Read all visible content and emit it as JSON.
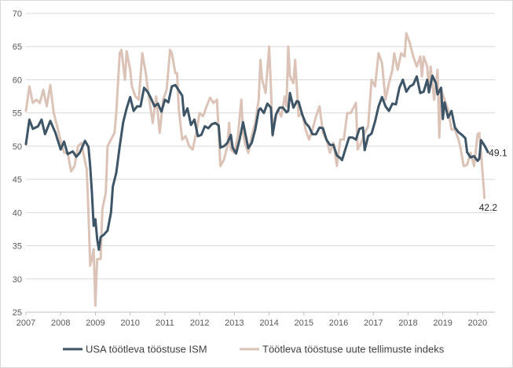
{
  "chart_data": {
    "type": "line",
    "title": "",
    "xlabel": "",
    "ylabel": "",
    "ylim": [
      25,
      70
    ],
    "yticks": [
      25,
      30,
      35,
      40,
      45,
      50,
      55,
      60,
      65,
      70
    ],
    "xlim": [
      2007,
      2020.5
    ],
    "xticks": [
      "2007",
      "2008",
      "2009",
      "2010",
      "2011",
      "2012",
      "2013",
      "2014",
      "2015",
      "2016",
      "2017",
      "2018",
      "2019",
      "2020"
    ],
    "grid": "horizontal",
    "legend_position": "bottom",
    "series": [
      {
        "name": "USA töötleva tööstuse ISM",
        "color": "#3d5566",
        "end_label": "49.1",
        "points": [
          [
            2007.0,
            50.3
          ],
          [
            2007.1,
            54.0
          ],
          [
            2007.2,
            52.6
          ],
          [
            2007.35,
            53.0
          ],
          [
            2007.45,
            54.0
          ],
          [
            2007.55,
            51.8
          ],
          [
            2007.7,
            53.8
          ],
          [
            2007.85,
            52.0
          ],
          [
            2008.0,
            49.5
          ],
          [
            2008.1,
            50.7
          ],
          [
            2008.2,
            48.8
          ],
          [
            2008.35,
            49.2
          ],
          [
            2008.45,
            48.4
          ],
          [
            2008.55,
            49.0
          ],
          [
            2008.7,
            50.8
          ],
          [
            2008.8,
            49.9
          ],
          [
            2008.85,
            47.0
          ],
          [
            2008.9,
            43.0
          ],
          [
            2008.95,
            38.0
          ],
          [
            2009.0,
            39.0
          ],
          [
            2009.05,
            36.0
          ],
          [
            2009.1,
            34.4
          ],
          [
            2009.15,
            36.3
          ],
          [
            2009.25,
            36.7
          ],
          [
            2009.35,
            37.3
          ],
          [
            2009.45,
            40.0
          ],
          [
            2009.5,
            43.9
          ],
          [
            2009.6,
            46.0
          ],
          [
            2009.7,
            50.0
          ],
          [
            2009.8,
            53.6
          ],
          [
            2009.9,
            55.7
          ],
          [
            2010.0,
            57.4
          ],
          [
            2010.1,
            55.3
          ],
          [
            2010.2,
            56.0
          ],
          [
            2010.3,
            56.0
          ],
          [
            2010.4,
            58.8
          ],
          [
            2010.5,
            58.2
          ],
          [
            2010.6,
            57.2
          ],
          [
            2010.7,
            56.0
          ],
          [
            2010.8,
            56.4
          ],
          [
            2010.9,
            55.2
          ],
          [
            2011.0,
            57.0
          ],
          [
            2011.1,
            56.6
          ],
          [
            2011.2,
            59.0
          ],
          [
            2011.3,
            59.2
          ],
          [
            2011.4,
            58.4
          ],
          [
            2011.5,
            57.6
          ],
          [
            2011.55,
            54.6
          ],
          [
            2011.65,
            55.7
          ],
          [
            2011.75,
            53.2
          ],
          [
            2011.85,
            54.0
          ],
          [
            2011.95,
            51.5
          ],
          [
            2012.05,
            51.7
          ],
          [
            2012.15,
            53.0
          ],
          [
            2012.25,
            52.7
          ],
          [
            2012.35,
            53.3
          ],
          [
            2012.45,
            53.5
          ],
          [
            2012.55,
            53.1
          ],
          [
            2012.6,
            49.8
          ],
          [
            2012.7,
            50.0
          ],
          [
            2012.8,
            50.5
          ],
          [
            2012.9,
            51.7
          ],
          [
            2012.95,
            49.8
          ],
          [
            2013.05,
            48.9
          ],
          [
            2013.15,
            51.0
          ],
          [
            2013.25,
            53.6
          ],
          [
            2013.35,
            51.0
          ],
          [
            2013.4,
            49.7
          ],
          [
            2013.5,
            50.5
          ],
          [
            2013.6,
            52.5
          ],
          [
            2013.7,
            55.4
          ],
          [
            2013.75,
            55.7
          ],
          [
            2013.85,
            55.0
          ],
          [
            2013.95,
            56.4
          ],
          [
            2014.05,
            55.8
          ],
          [
            2014.1,
            51.7
          ],
          [
            2014.2,
            54.8
          ],
          [
            2014.3,
            55.8
          ],
          [
            2014.4,
            55.8
          ],
          [
            2014.5,
            55.1
          ],
          [
            2014.55,
            55.3
          ],
          [
            2014.6,
            58.0
          ],
          [
            2014.7,
            55.8
          ],
          [
            2014.8,
            56.8
          ],
          [
            2014.85,
            56.7
          ],
          [
            2014.95,
            54.8
          ],
          [
            2015.05,
            53.5
          ],
          [
            2015.15,
            52.9
          ],
          [
            2015.25,
            51.8
          ],
          [
            2015.35,
            51.8
          ],
          [
            2015.45,
            52.8
          ],
          [
            2015.55,
            52.7
          ],
          [
            2015.65,
            51.0
          ],
          [
            2015.75,
            50.2
          ],
          [
            2015.85,
            50.2
          ],
          [
            2015.95,
            48.6
          ],
          [
            2016.05,
            48.2
          ],
          [
            2016.1,
            47.9
          ],
          [
            2016.2,
            49.6
          ],
          [
            2016.3,
            51.3
          ],
          [
            2016.4,
            51.3
          ],
          [
            2016.5,
            51.0
          ],
          [
            2016.6,
            52.6
          ],
          [
            2016.7,
            52.8
          ],
          [
            2016.75,
            49.4
          ],
          [
            2016.85,
            51.5
          ],
          [
            2016.95,
            51.9
          ],
          [
            2017.05,
            53.7
          ],
          [
            2017.15,
            56.0
          ],
          [
            2017.25,
            57.4
          ],
          [
            2017.35,
            56.0
          ],
          [
            2017.45,
            55.3
          ],
          [
            2017.55,
            56.4
          ],
          [
            2017.65,
            56.3
          ],
          [
            2017.75,
            58.8
          ],
          [
            2017.85,
            60.0
          ],
          [
            2017.95,
            58.2
          ],
          [
            2018.05,
            59.0
          ],
          [
            2018.15,
            59.3
          ],
          [
            2018.25,
            60.5
          ],
          [
            2018.35,
            58.0
          ],
          [
            2018.45,
            58.2
          ],
          [
            2018.55,
            60.0
          ],
          [
            2018.6,
            58.1
          ],
          [
            2018.7,
            60.6
          ],
          [
            2018.8,
            59.5
          ],
          [
            2018.85,
            57.8
          ],
          [
            2018.95,
            58.8
          ],
          [
            2019.0,
            54.1
          ],
          [
            2019.05,
            56.6
          ],
          [
            2019.15,
            54.3
          ],
          [
            2019.25,
            55.3
          ],
          [
            2019.35,
            52.8
          ],
          [
            2019.45,
            52.1
          ],
          [
            2019.55,
            51.7
          ],
          [
            2019.65,
            51.2
          ],
          [
            2019.7,
            49.1
          ],
          [
            2019.8,
            48.3
          ],
          [
            2019.9,
            48.5
          ],
          [
            2020.0,
            47.8
          ],
          [
            2020.05,
            48.1
          ],
          [
            2020.1,
            50.9
          ],
          [
            2020.2,
            50.1
          ],
          [
            2020.3,
            49.1
          ]
        ]
      },
      {
        "name": "Töötleva tööstuse uute tellimuste indeks",
        "color": "#dcc3b8",
        "end_label": "42.2",
        "points": [
          [
            2007.0,
            55.3
          ],
          [
            2007.1,
            59.0
          ],
          [
            2007.2,
            56.5
          ],
          [
            2007.3,
            57.0
          ],
          [
            2007.4,
            56.5
          ],
          [
            2007.5,
            58.5
          ],
          [
            2007.6,
            56.0
          ],
          [
            2007.7,
            59.2
          ],
          [
            2007.8,
            55.0
          ],
          [
            2007.9,
            53.0
          ],
          [
            2008.0,
            50.8
          ],
          [
            2008.1,
            49.0
          ],
          [
            2008.2,
            49.0
          ],
          [
            2008.3,
            46.2
          ],
          [
            2008.4,
            47.0
          ],
          [
            2008.5,
            50.0
          ],
          [
            2008.6,
            50.5
          ],
          [
            2008.65,
            49.0
          ],
          [
            2008.75,
            46.5
          ],
          [
            2008.8,
            40.0
          ],
          [
            2008.85,
            32.0
          ],
          [
            2008.9,
            33.0
          ],
          [
            2008.95,
            34.5
          ],
          [
            2009.0,
            26.0
          ],
          [
            2009.05,
            33.0
          ],
          [
            2009.15,
            33.0
          ],
          [
            2009.2,
            40.5
          ],
          [
            2009.3,
            43.0
          ],
          [
            2009.35,
            50.0
          ],
          [
            2009.45,
            51.0
          ],
          [
            2009.55,
            52.0
          ],
          [
            2009.6,
            55.0
          ],
          [
            2009.7,
            64.0
          ],
          [
            2009.75,
            64.5
          ],
          [
            2009.85,
            60.0
          ],
          [
            2009.9,
            64.3
          ],
          [
            2010.0,
            61.5
          ],
          [
            2010.05,
            59.0
          ],
          [
            2010.15,
            57.5
          ],
          [
            2010.25,
            57.0
          ],
          [
            2010.35,
            64.0
          ],
          [
            2010.45,
            61.0
          ],
          [
            2010.55,
            57.0
          ],
          [
            2010.65,
            53.5
          ],
          [
            2010.75,
            57.5
          ],
          [
            2010.85,
            52.0
          ],
          [
            2010.95,
            57.0
          ],
          [
            2011.05,
            58.5
          ],
          [
            2011.15,
            64.5
          ],
          [
            2011.2,
            64.0
          ],
          [
            2011.3,
            61.0
          ],
          [
            2011.35,
            61.0
          ],
          [
            2011.4,
            55.5
          ],
          [
            2011.5,
            51.0
          ],
          [
            2011.6,
            51.5
          ],
          [
            2011.7,
            50.0
          ],
          [
            2011.8,
            49.5
          ],
          [
            2011.9,
            52.0
          ],
          [
            2012.0,
            55.0
          ],
          [
            2012.1,
            54.5
          ],
          [
            2012.2,
            56.0
          ],
          [
            2012.3,
            57.3
          ],
          [
            2012.4,
            56.5
          ],
          [
            2012.5,
            57.0
          ],
          [
            2012.6,
            47.0
          ],
          [
            2012.7,
            48.0
          ],
          [
            2012.8,
            50.0
          ],
          [
            2012.85,
            53.5
          ],
          [
            2012.9,
            49.5
          ],
          [
            2013.0,
            49.0
          ],
          [
            2013.1,
            51.5
          ],
          [
            2013.2,
            57.0
          ],
          [
            2013.25,
            52.0
          ],
          [
            2013.3,
            50.5
          ],
          [
            2013.4,
            49.0
          ],
          [
            2013.5,
            51.5
          ],
          [
            2013.6,
            53.5
          ],
          [
            2013.7,
            57.0
          ],
          [
            2013.75,
            63.0
          ],
          [
            2013.8,
            60.0
          ],
          [
            2013.9,
            58.0
          ],
          [
            2014.0,
            65.0
          ],
          [
            2014.05,
            59.0
          ],
          [
            2014.1,
            51.5
          ],
          [
            2014.15,
            54.0
          ],
          [
            2014.25,
            55.5
          ],
          [
            2014.35,
            54.5
          ],
          [
            2014.45,
            57.5
          ],
          [
            2014.5,
            56.0
          ],
          [
            2014.55,
            65.0
          ],
          [
            2014.6,
            60.5
          ],
          [
            2014.7,
            59.5
          ],
          [
            2014.75,
            63.0
          ],
          [
            2014.85,
            54.5
          ],
          [
            2014.95,
            55.0
          ],
          [
            2015.05,
            52.5
          ],
          [
            2015.15,
            51.0
          ],
          [
            2015.25,
            52.5
          ],
          [
            2015.35,
            54.5
          ],
          [
            2015.45,
            56.0
          ],
          [
            2015.55,
            52.0
          ],
          [
            2015.65,
            51.0
          ],
          [
            2015.75,
            49.0
          ],
          [
            2015.85,
            50.5
          ],
          [
            2015.95,
            47.0
          ],
          [
            2016.05,
            51.0
          ],
          [
            2016.15,
            51.0
          ],
          [
            2016.25,
            55.0
          ],
          [
            2016.35,
            55.0
          ],
          [
            2016.45,
            56.0
          ],
          [
            2016.5,
            56.5
          ],
          [
            2016.55,
            49.5
          ],
          [
            2016.65,
            50.5
          ],
          [
            2016.75,
            52.0
          ],
          [
            2016.85,
            53.0
          ],
          [
            2016.95,
            60.0
          ],
          [
            2017.05,
            59.0
          ],
          [
            2017.15,
            64.0
          ],
          [
            2017.25,
            62.5
          ],
          [
            2017.35,
            57.0
          ],
          [
            2017.45,
            59.5
          ],
          [
            2017.55,
            61.5
          ],
          [
            2017.6,
            64.0
          ],
          [
            2017.7,
            61.5
          ],
          [
            2017.8,
            64.0
          ],
          [
            2017.9,
            63.5
          ],
          [
            2017.95,
            67.0
          ],
          [
            2018.05,
            65.5
          ],
          [
            2018.15,
            63.5
          ],
          [
            2018.25,
            62.0
          ],
          [
            2018.35,
            63.5
          ],
          [
            2018.4,
            60.5
          ],
          [
            2018.45,
            63.5
          ],
          [
            2018.55,
            62.0
          ],
          [
            2018.6,
            58.5
          ],
          [
            2018.65,
            62.0
          ],
          [
            2018.75,
            57.0
          ],
          [
            2018.85,
            61.5
          ],
          [
            2018.9,
            51.3
          ],
          [
            2018.95,
            58.5
          ],
          [
            2019.05,
            57.0
          ],
          [
            2019.15,
            55.5
          ],
          [
            2019.25,
            52.5
          ],
          [
            2019.35,
            52.5
          ],
          [
            2019.45,
            51.0
          ],
          [
            2019.5,
            50.0
          ],
          [
            2019.6,
            47.0
          ],
          [
            2019.7,
            47.2
          ],
          [
            2019.8,
            49.0
          ],
          [
            2019.9,
            47.0
          ],
          [
            2020.0,
            51.8
          ],
          [
            2020.05,
            52.0
          ],
          [
            2020.1,
            49.0
          ],
          [
            2020.2,
            42.2
          ]
        ]
      }
    ]
  }
}
